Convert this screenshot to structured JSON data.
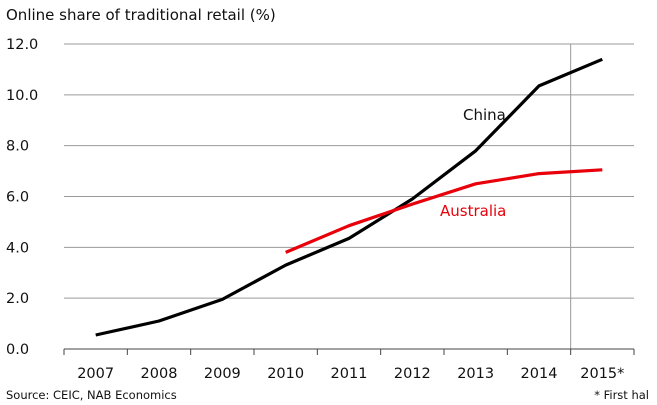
{
  "chart_data": {
    "type": "line",
    "title": "Online share of traditional retail (%)",
    "categories": [
      "2007",
      "2008",
      "2009",
      "2010",
      "2011",
      "2012",
      "2013",
      "2014",
      "2015*"
    ],
    "ylim": [
      0,
      12
    ],
    "yticks": [
      "0.0",
      "2.0",
      "4.0",
      "6.0",
      "8.0",
      "10.0",
      "12.0"
    ],
    "grid": true,
    "series": [
      {
        "name": "China",
        "color": "#000000",
        "values": [
          0.55,
          1.1,
          1.95,
          3.3,
          4.35,
          5.9,
          7.8,
          10.35,
          11.4
        ]
      },
      {
        "name": "Australia",
        "color": "#e8000b",
        "values": [
          null,
          null,
          null,
          3.8,
          4.85,
          5.7,
          6.5,
          6.9,
          7.05
        ]
      }
    ],
    "source": "Source: CEIC, NAB Economics",
    "footnote": "* First hal"
  }
}
